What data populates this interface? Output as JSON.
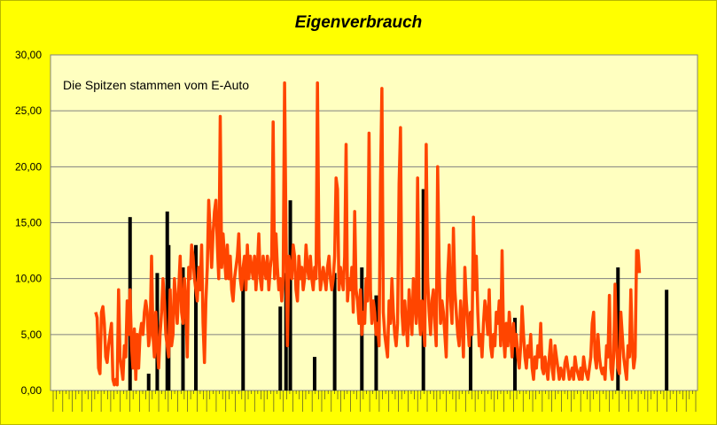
{
  "chart_data": {
    "type": "bar+line",
    "title": "Eigenverbrauch",
    "annotation": "Die Spitzen stammen vom E-Auto",
    "ylim": [
      0,
      30
    ],
    "yticks": [
      "0,00",
      "5,00",
      "10,00",
      "15,00",
      "20,00",
      "25,00",
      "30,00"
    ],
    "grid": true,
    "colors": {
      "bars": "#000000",
      "line": "#ff4500",
      "plot_bg": "#ffffc0",
      "page_bg": "#ffff00",
      "grid": "#808080"
    },
    "series": [
      {
        "kind": "bar",
        "values": [
          0,
          0,
          0,
          0,
          0,
          0,
          0,
          0,
          0,
          0,
          0,
          0,
          0,
          0,
          0,
          0,
          0,
          0,
          0,
          0,
          0,
          0,
          0,
          0,
          15.5,
          0,
          0,
          0,
          0,
          0,
          0,
          0,
          0,
          0,
          0,
          0,
          0,
          1.5,
          0,
          0,
          0,
          0,
          0,
          10.5,
          0,
          0,
          0,
          0,
          0,
          0,
          16.0,
          13.0,
          0,
          0,
          0,
          0,
          0,
          0,
          0,
          0,
          0,
          11.0,
          0,
          0,
          0,
          0,
          0,
          0,
          0,
          0,
          13.0,
          0,
          0,
          0,
          0,
          0,
          0,
          0,
          0,
          0,
          0,
          0,
          0,
          0,
          0,
          0,
          0,
          0,
          0,
          0,
          0,
          0,
          0,
          0,
          0,
          0,
          0,
          0,
          0,
          0,
          0,
          0,
          0,
          11.0,
          0,
          0,
          0,
          0,
          0,
          0,
          0,
          0,
          0,
          0,
          0,
          0,
          0,
          0,
          0,
          0,
          0,
          0,
          0,
          0,
          0,
          0,
          0,
          0,
          0,
          7.5,
          0,
          0,
          0,
          10.5,
          0,
          0,
          17.0,
          0,
          0,
          0,
          0,
          0,
          0,
          0,
          0,
          0,
          0,
          0,
          0,
          0,
          0,
          0,
          0,
          3.0,
          0,
          0,
          0,
          0,
          0,
          0,
          0,
          0,
          0,
          0,
          0,
          0,
          0,
          10.5,
          0,
          0,
          0,
          0,
          0,
          0,
          0,
          0,
          0,
          0,
          0,
          0,
          0,
          0,
          0,
          0,
          0,
          0,
          11.0,
          0,
          0,
          0,
          0,
          0,
          0,
          0,
          0,
          0,
          8.5,
          0,
          0,
          0,
          0,
          0,
          0,
          0,
          0,
          0,
          0,
          0,
          0,
          0,
          0,
          0,
          0,
          0,
          0,
          0,
          0,
          0,
          0,
          0,
          0,
          0,
          0,
          0,
          0,
          0,
          0,
          0,
          0,
          18.0,
          0,
          0,
          0,
          0,
          0,
          0,
          0,
          0,
          0,
          0,
          0,
          0,
          0,
          0,
          0,
          0,
          0,
          0,
          0,
          0,
          0,
          0,
          0,
          0,
          0,
          0,
          0,
          0,
          0,
          0,
          0,
          0,
          7.0,
          0,
          0,
          0,
          0,
          0,
          0,
          0,
          0,
          0,
          0,
          0,
          0,
          0,
          0,
          0,
          0,
          0,
          0,
          0,
          0,
          0,
          0,
          0,
          0,
          0,
          0,
          0,
          0,
          0,
          0,
          6.5,
          0,
          0,
          0,
          0,
          0,
          0,
          0,
          0,
          0,
          0,
          0,
          0,
          0,
          0,
          0,
          0,
          0,
          0,
          0,
          0,
          0,
          0,
          0,
          0,
          0,
          0,
          0,
          0,
          0,
          0,
          0,
          0,
          0,
          0,
          0,
          0,
          0,
          0,
          0,
          0,
          0,
          0,
          0,
          0,
          0,
          0,
          0,
          0,
          0,
          0,
          0,
          0,
          0,
          0,
          0,
          0,
          0,
          0,
          0,
          0,
          0,
          0,
          0,
          0,
          0,
          0,
          0,
          0,
          0,
          0,
          0,
          11.0,
          0,
          0,
          0,
          0,
          0,
          0,
          0,
          0,
          0,
          0,
          0,
          0,
          0,
          0,
          0,
          0,
          0,
          0,
          0,
          0,
          0,
          0,
          0,
          0,
          0,
          0,
          0,
          0,
          0,
          0,
          0,
          0,
          0,
          9.0,
          0,
          0,
          0
        ]
      },
      {
        "kind": "line",
        "values": [
          7,
          6.5,
          2,
          1.5,
          7,
          7.5,
          6,
          3,
          2.5,
          4,
          5,
          6,
          1,
          0.5,
          1,
          0.5,
          9,
          3,
          2,
          1,
          4,
          3,
          8,
          5,
          9,
          4,
          2,
          5.5,
          1,
          5,
          2,
          5,
          6,
          5,
          7,
          8,
          7,
          4,
          5,
          12,
          5,
          3,
          7,
          4,
          2,
          5,
          7,
          10,
          8,
          5,
          4,
          3,
          9,
          4,
          5,
          10,
          8,
          6,
          9,
          12,
          7,
          6,
          10,
          8,
          3,
          11,
          10,
          13,
          12,
          10,
          9,
          8,
          11,
          9,
          13,
          6,
          2.5,
          8,
          11,
          17,
          14,
          11,
          14,
          16,
          17,
          13,
          10,
          24.5,
          11,
          14,
          12,
          10,
          13,
          10,
          12,
          9,
          8,
          10,
          11,
          12,
          14,
          10,
          9,
          11,
          12,
          9,
          13,
          10,
          12,
          11,
          10,
          12,
          9,
          11,
          14,
          10,
          9,
          12,
          11,
          10,
          12,
          9,
          11,
          12,
          24,
          10,
          14,
          11,
          9,
          10,
          8,
          10,
          27.5,
          14,
          4,
          12,
          11,
          10,
          13,
          12,
          9,
          8,
          12,
          10,
          11,
          9,
          10,
          13,
          11,
          10,
          12,
          10,
          9,
          11,
          10,
          27.5,
          12,
          9,
          10,
          11,
          10,
          9,
          11,
          12,
          10,
          9,
          10,
          12,
          19,
          18,
          9,
          11,
          10,
          9,
          12,
          22,
          8,
          10,
          9,
          11,
          7,
          16,
          9,
          8,
          6,
          9,
          5,
          7,
          6,
          10,
          8,
          23,
          9,
          6,
          8,
          7,
          5,
          6,
          4,
          18.5,
          27,
          7,
          5,
          4,
          3,
          8,
          6,
          10,
          7,
          5,
          4,
          6,
          18.5,
          23.5,
          7,
          5,
          8,
          6,
          4,
          9,
          7,
          5,
          10,
          8,
          6,
          19,
          7,
          5,
          8,
          6,
          4,
          22,
          10,
          7,
          5,
          8,
          9,
          6,
          4,
          20,
          11,
          6,
          8,
          7,
          5,
          3,
          10,
          13,
          8,
          6,
          14.5,
          9,
          7,
          5,
          4,
          8,
          6,
          3,
          11,
          8,
          6,
          4,
          7,
          5,
          15.5,
          9,
          12,
          7,
          4,
          5,
          3,
          6,
          8,
          7,
          5,
          9,
          4,
          3,
          5,
          4,
          7,
          6,
          8,
          4,
          12.5,
          5,
          3,
          6,
          4,
          7,
          5,
          3,
          6,
          4,
          5,
          3,
          2,
          4,
          7.5,
          5,
          3,
          2,
          4,
          3,
          5,
          2,
          1,
          3,
          2,
          4,
          3,
          6,
          2,
          1.5,
          3,
          2,
          1,
          3,
          4.5,
          2,
          1,
          4,
          3,
          2,
          1,
          2,
          1.5,
          1,
          2.5,
          3,
          2,
          1,
          1.5,
          2,
          1,
          3,
          2,
          1.5,
          1,
          2,
          1,
          3,
          2,
          1.5,
          1,
          2,
          3,
          6,
          7,
          3,
          2,
          5,
          3,
          2,
          1.5,
          2,
          1,
          4,
          3,
          8.5,
          2,
          1,
          3,
          9.5,
          4,
          2,
          1.5,
          7,
          5,
          3,
          2,
          1,
          4,
          3,
          9,
          4,
          2,
          3,
          12.5,
          12.5,
          10.5
        ]
      }
    ]
  }
}
